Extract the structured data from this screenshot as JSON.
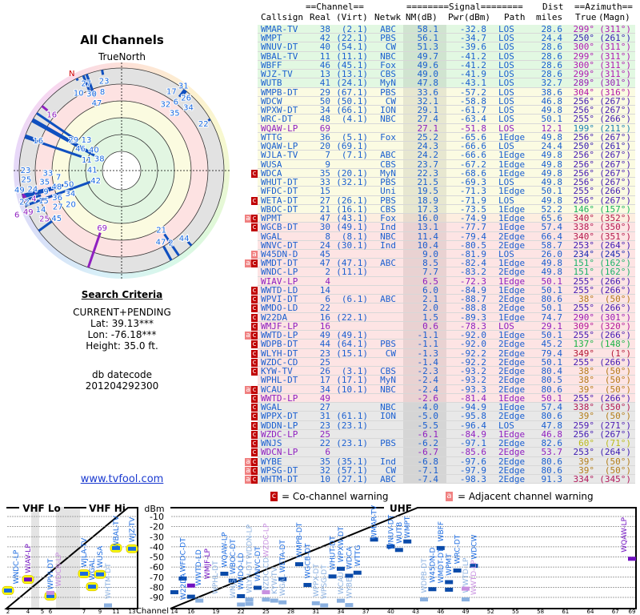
{
  "left": {
    "title": "All Channels",
    "north_label": "TrueNorth",
    "north_marker": "N",
    "criteria_title": "Search Criteria",
    "criteria_mode": "CURRENT+PENDING",
    "lat": "Lat: 39.13***",
    "lon": "Lon: -76.18***",
    "height": "Height: 35.0 ft.",
    "datecode_label": "db datecode",
    "datecode": "201204292300",
    "link": "www.tvfool.com"
  },
  "table": {
    "group_channel": "==Channel==",
    "group_signal": "========Signal========",
    "group_dist": "Dist",
    "group_azimuth": "==Azimuth==",
    "headers": {
      "callsign": "Callsign",
      "real": "Real",
      "virt": "(Virt)",
      "netwk": "Netwk",
      "nm": "NM(dB)",
      "pwr": "Pwr(dBm)",
      "path": "Path",
      "dist": "miles",
      "true": "True",
      "magn": "(Magn)"
    },
    "rows": [
      {
        "call": "WMAR-TV",
        "real": "38",
        "virt": "(2.1)",
        "net": "ABC",
        "nm": "58.1",
        "pwr": "-32.8",
        "path": "LOS",
        "dist": "28.6",
        "az": "299°",
        "mag": "(311°)",
        "tier": "green",
        "badge": ""
      },
      {
        "call": "WMPT",
        "real": "42",
        "virt": "(22.1)",
        "net": "PBS",
        "nm": "56.1",
        "pwr": "-34.7",
        "path": "LOS",
        "dist": "24.4",
        "az": "250°",
        "mag": "(261°)",
        "tier": "green",
        "badge": ""
      },
      {
        "call": "WNUV-DT",
        "real": "40",
        "virt": "(54.1)",
        "net": "CW",
        "nm": "51.3",
        "pwr": "-39.6",
        "path": "LOS",
        "dist": "28.6",
        "az": "300°",
        "mag": "(311°)",
        "tier": "green",
        "badge": ""
      },
      {
        "call": "WBAL-TV",
        "real": "11",
        "virt": "(11.1)",
        "net": "NBC",
        "nm": "49.7",
        "pwr": "-41.2",
        "path": "LOS",
        "dist": "28.6",
        "az": "299°",
        "mag": "(311°)",
        "tier": "green",
        "badge": ""
      },
      {
        "call": "WBFF",
        "real": "46",
        "virt": "(45.1)",
        "net": "Fox",
        "nm": "49.6",
        "pwr": "-41.2",
        "path": "LOS",
        "dist": "28.6",
        "az": "300°",
        "mag": "(311°)",
        "tier": "green",
        "badge": ""
      },
      {
        "call": "WJZ-TV",
        "real": "13",
        "virt": "(13.1)",
        "net": "CBS",
        "nm": "49.0",
        "pwr": "-41.9",
        "path": "LOS",
        "dist": "28.6",
        "az": "299°",
        "mag": "(311°)",
        "tier": "green",
        "badge": ""
      },
      {
        "call": "WUTB",
        "real": "41",
        "virt": "(24.1)",
        "net": "MyN",
        "nm": "47.8",
        "pwr": "-43.1",
        "path": "LOS",
        "dist": "32.7",
        "az": "289°",
        "mag": "(301°)",
        "tier": "green",
        "badge": ""
      },
      {
        "call": "WMPB-DT",
        "real": "29",
        "virt": "(67.1)",
        "net": "PBS",
        "nm": "33.6",
        "pwr": "-57.2",
        "path": "LOS",
        "dist": "38.6",
        "az": "304°",
        "mag": "(316°)",
        "tier": "yellow",
        "badge": ""
      },
      {
        "call": "WDCW",
        "real": "50",
        "virt": "(50.1)",
        "net": "CW",
        "nm": "32.1",
        "pwr": "-58.8",
        "path": "LOS",
        "dist": "46.8",
        "az": "256°",
        "mag": "(267°)",
        "tier": "yellow",
        "badge": ""
      },
      {
        "call": "WPXW-DT",
        "real": "34",
        "virt": "(66.1)",
        "net": "ION",
        "nm": "29.1",
        "pwr": "-61.7",
        "path": "LOS",
        "dist": "49.8",
        "az": "256°",
        "mag": "(267°)",
        "tier": "yellow",
        "badge": ""
      },
      {
        "call": "WRC-DT",
        "real": "48",
        "virt": "(4.1)",
        "net": "NBC",
        "nm": "27.4",
        "pwr": "-63.4",
        "path": "LOS",
        "dist": "50.1",
        "az": "255°",
        "mag": "(266°)",
        "tier": "yellow",
        "badge": ""
      },
      {
        "call": "WQAW-LP",
        "real": "69",
        "virt": "",
        "net": "",
        "nm": "27.1",
        "pwr": "-51.8",
        "path": "LOS",
        "dist": "12.1",
        "az": "199°",
        "mag": "(211°)",
        "tier": "yellow",
        "badge": "",
        "lp": true
      },
      {
        "call": "WTTG",
        "real": "36",
        "virt": "(5.1)",
        "net": "Fox",
        "nm": "25.2",
        "pwr": "-65.6",
        "path": "1Edge",
        "dist": "49.8",
        "az": "256°",
        "mag": "(267°)",
        "tier": "yellow",
        "badge": ""
      },
      {
        "call": "WQAW-LP",
        "real": "20",
        "virt": "(69.1)",
        "net": "",
        "nm": "24.3",
        "pwr": "-66.6",
        "path": "LOS",
        "dist": "24.4",
        "az": "250°",
        "mag": "(261°)",
        "tier": "yellow",
        "badge": ""
      },
      {
        "call": "WJLA-TV",
        "real": "7",
        "virt": "(7.1)",
        "net": "ABC",
        "nm": "24.2",
        "pwr": "-66.6",
        "path": "1Edge",
        "dist": "49.8",
        "az": "256°",
        "mag": "(267°)",
        "tier": "yellow",
        "badge": ""
      },
      {
        "call": "WUSA",
        "real": "9",
        "virt": "",
        "net": "CBS",
        "nm": "23.7",
        "pwr": "-67.2",
        "path": "1Edge",
        "dist": "49.8",
        "az": "256°",
        "mag": "(267°)",
        "tier": "yellow",
        "badge": ""
      },
      {
        "call": "WDCA",
        "real": "35",
        "virt": "(20.1)",
        "net": "MyN",
        "nm": "22.3",
        "pwr": "-68.6",
        "path": "1Edge",
        "dist": "49.8",
        "az": "256°",
        "mag": "(267°)",
        "tier": "yellow",
        "badge": "c"
      },
      {
        "call": "WHUT-DT",
        "real": "33",
        "virt": "(32.1)",
        "net": "PBS",
        "nm": "21.5",
        "pwr": "-69.3",
        "path": "LOS",
        "dist": "49.8",
        "az": "256°",
        "mag": "(267°)",
        "tier": "yellow",
        "badge": ""
      },
      {
        "call": "WFDC-DT",
        "real": "15",
        "virt": "",
        "net": "Uni",
        "nm": "19.5",
        "pwr": "-71.3",
        "path": "1Edge",
        "dist": "50.1",
        "az": "255°",
        "mag": "(266°)",
        "tier": "yellow",
        "badge": ""
      },
      {
        "call": "WETA-DT",
        "real": "27",
        "virt": "(26.1)",
        "net": "PBS",
        "nm": "18.9",
        "pwr": "-71.9",
        "path": "LOS",
        "dist": "49.8",
        "az": "256°",
        "mag": "(267°)",
        "tier": "yellow",
        "badge": "c"
      },
      {
        "call": "WBOC-DT",
        "real": "21",
        "virt": "(16.1)",
        "net": "CBS",
        "nm": "17.3",
        "pwr": "-73.5",
        "path": "1Edge",
        "dist": "52.2",
        "az": "146°",
        "mag": "(157°)",
        "tier": "yellow",
        "badge": ""
      },
      {
        "call": "WPMT",
        "real": "47",
        "virt": "(43.1)",
        "net": "Fox",
        "nm": "16.0",
        "pwr": "-74.9",
        "path": "1Edge",
        "dist": "65.6",
        "az": "340°",
        "mag": "(352°)",
        "tier": "orange",
        "badge": "ac"
      },
      {
        "call": "WGCB-DT",
        "real": "30",
        "virt": "(49.1)",
        "net": "Ind",
        "nm": "13.1",
        "pwr": "-77.7",
        "path": "1Edge",
        "dist": "57.4",
        "az": "338°",
        "mag": "(350°)",
        "tier": "pink",
        "badge": "c"
      },
      {
        "call": "WGAL",
        "real": "8",
        "virt": "(8.1)",
        "net": "NBC",
        "nm": "11.4",
        "pwr": "-79.4",
        "path": "2Edge",
        "dist": "66.4",
        "az": "340°",
        "mag": "(351°)",
        "tier": "pink",
        "badge": ""
      },
      {
        "call": "WNVC-DT",
        "real": "24",
        "virt": "(30.1)",
        "net": "Ind",
        "nm": "10.4",
        "pwr": "-80.5",
        "path": "2Edge",
        "dist": "58.7",
        "az": "253°",
        "mag": "(264°)",
        "tier": "pink",
        "badge": ""
      },
      {
        "call": "W45DN-D",
        "real": "45",
        "virt": "",
        "net": "",
        "nm": "9.0",
        "pwr": "-81.9",
        "path": "LOS",
        "dist": "26.0",
        "az": "234°",
        "mag": "(245°)",
        "tier": "pink",
        "badge": "a"
      },
      {
        "call": "WMDT-DT",
        "real": "47",
        "virt": "(47.1)",
        "net": "ABC",
        "nm": "8.5",
        "pwr": "-82.4",
        "path": "1Edge",
        "dist": "49.8",
        "az": "151°",
        "mag": "(162°)",
        "tier": "pink",
        "badge": "ac"
      },
      {
        "call": "WNDC-LP",
        "real": "2",
        "virt": "(11.1)",
        "net": "",
        "nm": "7.7",
        "pwr": "-83.2",
        "path": "2Edge",
        "dist": "49.8",
        "az": "151°",
        "mag": "(162°)",
        "tier": "pink",
        "badge": ""
      },
      {
        "call": "WIAV-LP",
        "real": "4",
        "virt": "",
        "net": "",
        "nm": "6.5",
        "pwr": "-72.3",
        "path": "1Edge",
        "dist": "50.1",
        "az": "255°",
        "mag": "(266°)",
        "tier": "pink",
        "badge": "",
        "lp": true
      },
      {
        "call": "WWTD-LD",
        "real": "14",
        "virt": "",
        "net": "",
        "nm": "6.0",
        "pwr": "-84.9",
        "path": "1Edge",
        "dist": "50.1",
        "az": "255°",
        "mag": "(266°)",
        "tier": "pink",
        "badge": "c"
      },
      {
        "call": "WPVI-DT",
        "real": "6",
        "virt": "(6.1)",
        "net": "ABC",
        "nm": "2.1",
        "pwr": "-88.7",
        "path": "2Edge",
        "dist": "80.6",
        "az": "38°",
        "mag": "(50°)",
        "tier": "pink",
        "badge": "c"
      },
      {
        "call": "WMDO-LD",
        "real": "22",
        "virt": "",
        "net": "",
        "nm": "2.0",
        "pwr": "-88.8",
        "path": "2Edge",
        "dist": "50.1",
        "az": "255°",
        "mag": "(266°)",
        "tier": "pink",
        "badge": "c"
      },
      {
        "call": "W22DA",
        "real": "16",
        "virt": "(22.1)",
        "net": "",
        "nm": "1.5",
        "pwr": "-89.3",
        "path": "1Edge",
        "dist": "74.7",
        "az": "290°",
        "mag": "(301°)",
        "tier": "pink",
        "badge": "c"
      },
      {
        "call": "WMJF-LP",
        "real": "16",
        "virt": "",
        "net": "",
        "nm": "0.6",
        "pwr": "-78.3",
        "path": "LOS",
        "dist": "29.1",
        "az": "309°",
        "mag": "(320°)",
        "tier": "pink",
        "badge": "c",
        "lp": true
      },
      {
        "call": "WWTD-LP",
        "real": "49",
        "virt": "(49.1)",
        "net": "",
        "nm": "-1.1",
        "pwr": "-92.0",
        "path": "1Edge",
        "dist": "50.1",
        "az": "255°",
        "mag": "(266°)",
        "tier": "pink",
        "badge": "ac"
      },
      {
        "call": "WDPB-DT",
        "real": "44",
        "virt": "(64.1)",
        "net": "PBS",
        "nm": "-1.1",
        "pwr": "-92.0",
        "path": "2Edge",
        "dist": "45.2",
        "az": "137°",
        "mag": "(148°)",
        "tier": "pink",
        "badge": "c"
      },
      {
        "call": "WLYH-DT",
        "real": "23",
        "virt": "(15.1)",
        "net": "CW",
        "nm": "-1.3",
        "pwr": "-92.2",
        "path": "2Edge",
        "dist": "79.4",
        "az": "349°",
        "mag": "(1°)",
        "tier": "pink",
        "badge": "c"
      },
      {
        "call": "WZDC-CD",
        "real": "25",
        "virt": "",
        "net": "",
        "nm": "-1.4",
        "pwr": "-92.2",
        "path": "2Edge",
        "dist": "50.1",
        "az": "255°",
        "mag": "(266°)",
        "tier": "pink",
        "badge": "c"
      },
      {
        "call": "KYW-TV",
        "real": "26",
        "virt": "(3.1)",
        "net": "CBS",
        "nm": "-2.3",
        "pwr": "-93.2",
        "path": "2Edge",
        "dist": "80.4",
        "az": "38°",
        "mag": "(50°)",
        "tier": "pink",
        "badge": "c"
      },
      {
        "call": "WPHL-DT",
        "real": "17",
        "virt": "(17.1)",
        "net": "MyN",
        "nm": "-2.4",
        "pwr": "-93.2",
        "path": "2Edge",
        "dist": "80.5",
        "az": "38°",
        "mag": "(50°)",
        "tier": "pink",
        "badge": ""
      },
      {
        "call": "WCAU",
        "real": "34",
        "virt": "(10.1)",
        "net": "NBC",
        "nm": "-2.4",
        "pwr": "-93.3",
        "path": "2Edge",
        "dist": "80.6",
        "az": "39°",
        "mag": "(50°)",
        "tier": "pink",
        "badge": "ac"
      },
      {
        "call": "WWTD-LP",
        "real": "49",
        "virt": "",
        "net": "",
        "nm": "-2.6",
        "pwr": "-81.4",
        "path": "1Edge",
        "dist": "50.1",
        "az": "255°",
        "mag": "(266°)",
        "tier": "pink",
        "badge": "c",
        "lp": true
      },
      {
        "call": "WGAL",
        "real": "27",
        "virt": "",
        "net": "NBC",
        "nm": "-4.0",
        "pwr": "-94.9",
        "path": "1Edge",
        "dist": "57.4",
        "az": "338°",
        "mag": "(350°)",
        "tier": "gray",
        "badge": "c"
      },
      {
        "call": "WPPX-DT",
        "real": "31",
        "virt": "(61.1)",
        "net": "ION",
        "nm": "-5.0",
        "pwr": "-95.8",
        "path": "2Edge",
        "dist": "80.6",
        "az": "39°",
        "mag": "(50°)",
        "tier": "gray",
        "badge": "c"
      },
      {
        "call": "WDDN-LP",
        "real": "23",
        "virt": "(23.1)",
        "net": "",
        "nm": "-5.5",
        "pwr": "-96.4",
        "path": "LOS",
        "dist": "47.8",
        "az": "259°",
        "mag": "(271°)",
        "tier": "gray",
        "badge": "c"
      },
      {
        "call": "WZDC-LP",
        "real": "25",
        "virt": "",
        "net": "",
        "nm": "-6.1",
        "pwr": "-84.9",
        "path": "1Edge",
        "dist": "46.8",
        "az": "256°",
        "mag": "(267°)",
        "tier": "gray",
        "badge": "c",
        "lp": true
      },
      {
        "call": "WNJS",
        "real": "22",
        "virt": "(23.1)",
        "net": "PBS",
        "nm": "-6.2",
        "pwr": "-97.1",
        "path": "2Edge",
        "dist": "82.6",
        "az": "60°",
        "mag": "(71°)",
        "tier": "gray",
        "badge": "c"
      },
      {
        "call": "WDCN-LP",
        "real": "6",
        "virt": "",
        "net": "",
        "nm": "-6.7",
        "pwr": "-85.6",
        "path": "2Edge",
        "dist": "53.7",
        "az": "253°",
        "mag": "(264°)",
        "tier": "gray",
        "badge": "c",
        "lp": true
      },
      {
        "call": "WYBE",
        "real": "35",
        "virt": "(35.1)",
        "net": "Ind",
        "nm": "-6.8",
        "pwr": "-97.6",
        "path": "2Edge",
        "dist": "80.6",
        "az": "39°",
        "mag": "(50°)",
        "tier": "gray",
        "badge": "ac"
      },
      {
        "call": "WPSG-DT",
        "real": "32",
        "virt": "(57.1)",
        "net": "CW",
        "nm": "-7.1",
        "pwr": "-97.9",
        "path": "2Edge",
        "dist": "80.6",
        "az": "39°",
        "mag": "(50°)",
        "tier": "gray",
        "badge": "ac"
      },
      {
        "call": "WHTM-DT",
        "real": "10",
        "virt": "(27.1)",
        "net": "ABC",
        "nm": "-7.4",
        "pwr": "-98.3",
        "path": "2Edge",
        "dist": "91.3",
        "az": "334°",
        "mag": "(345°)",
        "tier": "gray",
        "badge": "ac"
      }
    ]
  },
  "legend": {
    "co_badge": "c",
    "co_text": "= Co-channel warning",
    "adj_badge": "a",
    "adj_text": "= Adjacent channel warning"
  },
  "spectrum": {
    "vhf_lo": "VHF Lo",
    "vhf_hi": "VHF Hi",
    "uhf": "UHF",
    "unit": "dBm",
    "channel_label": "Channel",
    "dbm_ticks": [
      "-10",
      "-20",
      "-30",
      "-40",
      "-50",
      "-60",
      "-70",
      "-80",
      "-90"
    ],
    "vhf_ticks": [
      "2",
      "4",
      "5",
      "6",
      "7",
      "9",
      "11",
      "13"
    ],
    "uhf_ticks": [
      "14",
      "16",
      "19",
      "22",
      "25",
      "28",
      "31",
      "34",
      "37",
      "40",
      "43",
      "46",
      "49",
      "52",
      "55",
      "58",
      "61",
      "64",
      "67",
      "69"
    ]
  },
  "colors": {
    "blue": "#1a5fd0",
    "purple": "#9020c0",
    "co": "#c00000",
    "adj": "#f08080"
  }
}
